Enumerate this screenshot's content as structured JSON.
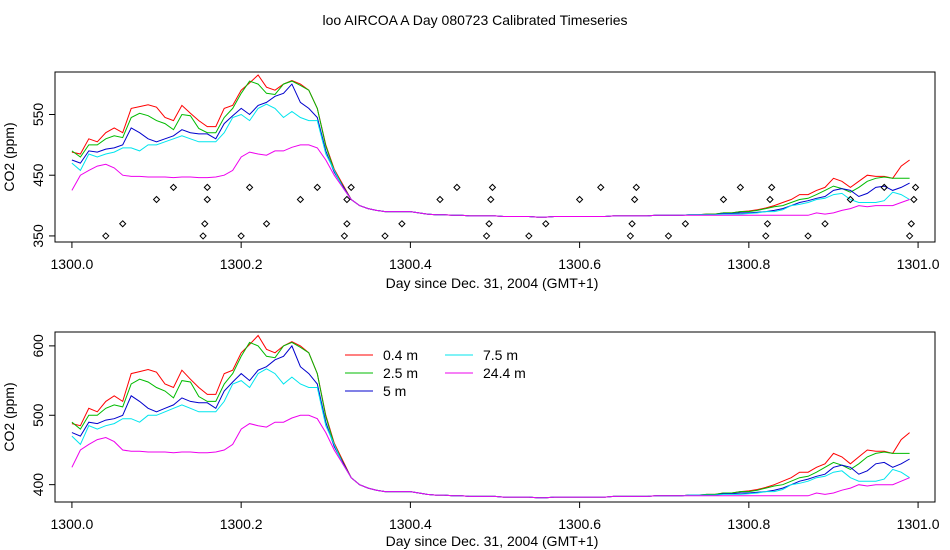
{
  "figure": {
    "title": "loo AIRCOA A  Day 080723  Calibrated Timeseries"
  },
  "colors": {
    "0.4 m": "#ff0000",
    "2.5 m": "#00bb00",
    "5 m": "#0000cc",
    "7.5 m": "#00e5ee",
    "24.4 m": "#ee00ee",
    "markers": "#000000",
    "axes": "#000000"
  },
  "chart_data": [
    {
      "type": "line",
      "title": "",
      "xlabel": "Day since Dec. 31, 2004 (GMT+1)",
      "ylabel": "CO2 (ppm)",
      "xlim": [
        1299.98,
        1301.02
      ],
      "ylim": [
        340,
        620
      ],
      "xticks": [
        1300.0,
        1300.2,
        1300.4,
        1300.6,
        1300.8,
        1301.0
      ],
      "xtick_labels": [
        "1300.0",
        "1300.2",
        "1300.4",
        "1300.6",
        "1300.8",
        "1301.0"
      ],
      "yticks": [
        350,
        450,
        550
      ],
      "ytick_labels": [
        "350",
        "450",
        "550"
      ],
      "legend": null,
      "x": [
        1300.0,
        1300.01,
        1300.02,
        1300.03,
        1300.04,
        1300.05,
        1300.06,
        1300.07,
        1300.08,
        1300.09,
        1300.1,
        1300.11,
        1300.12,
        1300.13,
        1300.14,
        1300.15,
        1300.16,
        1300.17,
        1300.18,
        1300.19,
        1300.2,
        1300.21,
        1300.22,
        1300.23,
        1300.24,
        1300.25,
        1300.26,
        1300.27,
        1300.28,
        1300.29,
        1300.3,
        1300.31,
        1300.32,
        1300.33,
        1300.34,
        1300.35,
        1300.36,
        1300.37,
        1300.38,
        1300.39,
        1300.4,
        1300.41,
        1300.42,
        1300.43,
        1300.44,
        1300.45,
        1300.46,
        1300.47,
        1300.48,
        1300.49,
        1300.5,
        1300.51,
        1300.52,
        1300.53,
        1300.54,
        1300.55,
        1300.56,
        1300.57,
        1300.58,
        1300.59,
        1300.6,
        1300.61,
        1300.62,
        1300.63,
        1300.64,
        1300.65,
        1300.66,
        1300.67,
        1300.68,
        1300.69,
        1300.7,
        1300.71,
        1300.72,
        1300.73,
        1300.74,
        1300.75,
        1300.76,
        1300.77,
        1300.78,
        1300.79,
        1300.8,
        1300.81,
        1300.82,
        1300.83,
        1300.84,
        1300.85,
        1300.86,
        1300.87,
        1300.88,
        1300.89,
        1300.9,
        1300.91,
        1300.92,
        1300.93,
        1300.94,
        1300.95,
        1300.96,
        1300.97,
        1300.98,
        1300.99
      ],
      "series": [
        {
          "name": "0.4 m",
          "values": [
            488,
            485,
            510,
            505,
            520,
            528,
            520,
            560,
            563,
            566,
            562,
            545,
            540,
            565,
            552,
            540,
            530,
            530,
            560,
            565,
            590,
            602,
            615,
            595,
            590,
            600,
            606,
            600,
            590,
            560,
            500,
            460,
            435,
            410,
            400,
            395,
            392,
            390,
            390,
            390,
            390,
            388,
            386,
            385,
            385,
            384,
            384,
            383,
            383,
            383,
            383,
            382,
            382,
            382,
            382,
            381,
            381,
            382,
            382,
            382,
            382,
            382,
            382,
            382,
            383,
            383,
            383,
            383,
            383,
            384,
            384,
            384,
            384,
            385,
            385,
            386,
            386,
            388,
            388,
            390,
            391,
            393,
            396,
            400,
            405,
            410,
            418,
            418,
            425,
            430,
            445,
            440,
            430,
            440,
            450,
            448,
            448,
            445,
            465,
            475
          ]
        },
        {
          "name": "2.5 m",
          "values": [
            490,
            480,
            500,
            500,
            510,
            515,
            512,
            545,
            552,
            548,
            540,
            535,
            525,
            550,
            548,
            527,
            520,
            520,
            545,
            560,
            585,
            605,
            600,
            585,
            583,
            600,
            605,
            598,
            590,
            560,
            498,
            458,
            433,
            410,
            400,
            395,
            392,
            390,
            390,
            390,
            390,
            388,
            386,
            385,
            385,
            384,
            384,
            383,
            383,
            383,
            383,
            382,
            382,
            382,
            382,
            381,
            381,
            382,
            382,
            382,
            382,
            382,
            382,
            382,
            383,
            383,
            383,
            383,
            383,
            384,
            384,
            384,
            384,
            385,
            385,
            386,
            386,
            388,
            388,
            390,
            390,
            392,
            395,
            398,
            400,
            405,
            410,
            412,
            418,
            425,
            432,
            428,
            422,
            430,
            440,
            445,
            447,
            445,
            445,
            445
          ]
        },
        {
          "name": "5 m",
          "values": [
            475,
            470,
            490,
            488,
            493,
            495,
            500,
            528,
            520,
            510,
            505,
            510,
            515,
            525,
            520,
            518,
            518,
            510,
            535,
            548,
            560,
            550,
            565,
            570,
            580,
            585,
            600,
            570,
            560,
            545,
            490,
            455,
            432,
            410,
            400,
            395,
            392,
            390,
            390,
            390,
            390,
            388,
            386,
            385,
            385,
            384,
            384,
            383,
            383,
            383,
            383,
            382,
            382,
            382,
            382,
            381,
            381,
            382,
            382,
            382,
            382,
            382,
            382,
            382,
            383,
            383,
            383,
            383,
            383,
            384,
            384,
            384,
            384,
            385,
            385,
            385,
            385,
            387,
            387,
            388,
            388,
            389,
            390,
            392,
            395,
            400,
            405,
            408,
            412,
            415,
            425,
            428,
            425,
            415,
            420,
            430,
            432,
            425,
            430,
            437
          ]
        },
        {
          "name": "7.5 m",
          "values": [
            470,
            458,
            485,
            480,
            485,
            488,
            495,
            495,
            490,
            500,
            500,
            505,
            510,
            515,
            510,
            505,
            505,
            505,
            520,
            545,
            550,
            540,
            560,
            567,
            560,
            545,
            555,
            545,
            540,
            540,
            485,
            458,
            430,
            410,
            400,
            395,
            392,
            390,
            390,
            390,
            390,
            388,
            386,
            385,
            385,
            384,
            384,
            383,
            383,
            383,
            383,
            382,
            382,
            382,
            382,
            381,
            381,
            382,
            382,
            382,
            382,
            382,
            382,
            382,
            383,
            383,
            383,
            383,
            383,
            384,
            384,
            384,
            384,
            385,
            385,
            385,
            385,
            386,
            386,
            386,
            387,
            388,
            390,
            390,
            393,
            400,
            402,
            405,
            410,
            412,
            418,
            420,
            410,
            405,
            405,
            405,
            408,
            422,
            418,
            410
          ]
        },
        {
          "name": "24.4 m",
          "values": [
            425,
            450,
            458,
            465,
            468,
            462,
            450,
            448,
            448,
            447,
            447,
            447,
            446,
            447,
            447,
            446,
            446,
            447,
            450,
            458,
            480,
            488,
            485,
            483,
            490,
            490,
            496,
            500,
            500,
            495,
            475,
            450,
            430,
            410,
            400,
            395,
            392,
            390,
            390,
            390,
            390,
            388,
            386,
            385,
            385,
            384,
            384,
            383,
            383,
            383,
            383,
            382,
            382,
            382,
            382,
            381,
            381,
            382,
            382,
            382,
            382,
            382,
            382,
            382,
            383,
            383,
            383,
            383,
            383,
            384,
            384,
            384,
            384,
            384,
            384,
            384,
            384,
            384,
            384,
            384,
            384,
            384,
            384,
            384,
            384,
            384,
            384,
            384,
            388,
            386,
            388,
            392,
            395,
            400,
            398,
            400,
            400,
            400,
            405,
            410
          ]
        }
      ],
      "markers": {
        "x": [
          1300.04,
          1300.06,
          1300.1,
          1300.12,
          1300.155,
          1300.157,
          1300.16,
          1300.16,
          1300.2,
          1300.21,
          1300.23,
          1300.27,
          1300.29,
          1300.322,
          1300.325,
          1300.325,
          1300.33,
          1300.37,
          1300.39,
          1300.435,
          1300.455,
          1300.49,
          1300.493,
          1300.495,
          1300.497,
          1300.54,
          1300.56,
          1300.6,
          1300.625,
          1300.66,
          1300.662,
          1300.665,
          1300.667,
          1300.705,
          1300.725,
          1300.77,
          1300.79,
          1300.82,
          1300.822,
          1300.825,
          1300.827,
          1300.87,
          1300.89,
          1300.92,
          1300.96,
          1300.99,
          1300.992,
          1300.995,
          1300.997
        ],
        "y": [
          350,
          370,
          410,
          430,
          350,
          370,
          410,
          430,
          350,
          430,
          370,
          410,
          430,
          350,
          370,
          410,
          430,
          350,
          370,
          410,
          430,
          350,
          370,
          410,
          430,
          350,
          370,
          410,
          430,
          350,
          370,
          410,
          430,
          350,
          370,
          410,
          430,
          350,
          370,
          410,
          430,
          350,
          370,
          410,
          430,
          350,
          370,
          410,
          430
        ]
      }
    },
    {
      "type": "line",
      "title": "",
      "xlabel": "Day since Dec. 31, 2004 (GMT+1)",
      "ylabel": "CO2 (ppm)",
      "xlim": [
        1299.98,
        1301.02
      ],
      "ylim": [
        375,
        620
      ],
      "xticks": [
        1300.0,
        1300.2,
        1300.4,
        1300.6,
        1300.8,
        1301.0
      ],
      "xtick_labels": [
        "1300.0",
        "1300.2",
        "1300.4",
        "1300.6",
        "1300.8",
        "1301.0"
      ],
      "yticks": [
        400,
        500,
        600
      ],
      "ytick_labels": [
        "400",
        "500",
        "600"
      ],
      "legend": {
        "placement": "top-center",
        "entries": [
          "0.4 m",
          "2.5 m",
          "5 m",
          "7.5 m",
          "24.4 m"
        ]
      },
      "series_ref": "same as panel 1"
    }
  ]
}
